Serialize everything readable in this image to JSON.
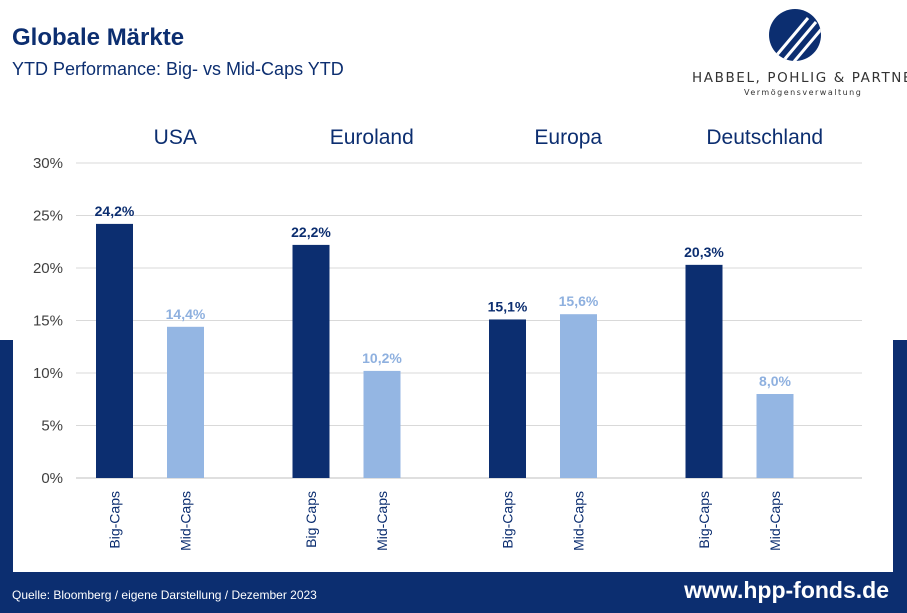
{
  "header": {
    "title": "Globale Märkte",
    "subtitle": "YTD Performance: Big- vs Mid-Caps YTD"
  },
  "logo": {
    "name": "HABBEL, POHLIG & PARTNER",
    "tagline": "Vermögensverwaltung",
    "icon": "hpp-stripes-logo-icon"
  },
  "footer": {
    "source": "Quelle: Bloomberg / eigene Darstellung / Dezember 2023",
    "url": "www.hpp-fonds.de"
  },
  "colors": {
    "big_caps": "#0c2e70",
    "mid_caps": "#94b6e3",
    "mid_caps_label": "#8eb0df",
    "brand": "#0c2e70",
    "grid": "#d9d9d9"
  },
  "chart_data": {
    "type": "bar",
    "ylim": [
      0,
      30
    ],
    "y_ticks": [
      "0%",
      "5%",
      "10%",
      "15%",
      "20%",
      "25%",
      "30%"
    ],
    "y_tick_values": [
      0,
      5,
      10,
      15,
      20,
      25,
      30
    ],
    "grid": true,
    "groups": [
      {
        "name": "USA",
        "bars": [
          {
            "category": "Big-Caps",
            "value": 24.2,
            "label": "24,2%"
          },
          {
            "category": "Mid-Caps",
            "value": 14.4,
            "label": "14,4%"
          }
        ]
      },
      {
        "name": "Euroland",
        "bars": [
          {
            "category": "Big Caps",
            "value": 22.2,
            "label": "22,2%"
          },
          {
            "category": "Mid-Caps",
            "value": 10.2,
            "label": "10,2%"
          }
        ]
      },
      {
        "name": "Europa",
        "bars": [
          {
            "category": "Big-Caps",
            "value": 15.1,
            "label": "15,1%"
          },
          {
            "category": "Mid-Caps",
            "value": 15.6,
            "label": "15,6%"
          }
        ]
      },
      {
        "name": "Deutschland",
        "bars": [
          {
            "category": "Big-Caps",
            "value": 20.3,
            "label": "20,3%"
          },
          {
            "category": "Mid-Caps",
            "value": 8.0,
            "label": "8,0%"
          }
        ]
      }
    ]
  }
}
